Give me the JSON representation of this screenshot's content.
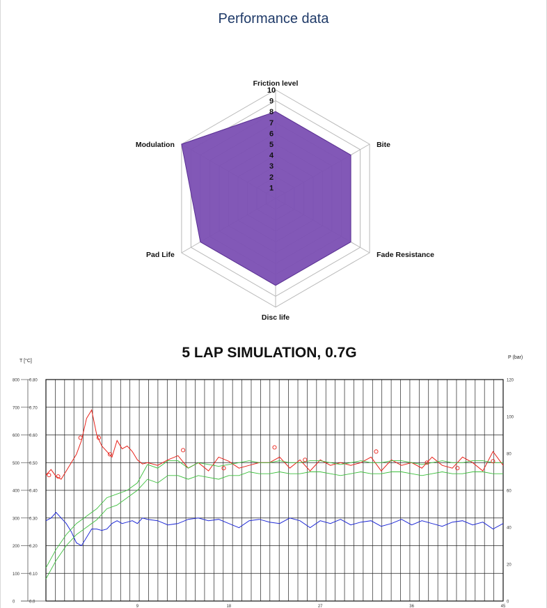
{
  "page": {
    "title": "Performance data"
  },
  "chart_data": [
    {
      "type": "radar",
      "categories": [
        "Friction level",
        "Bite",
        "Fade Resistance",
        "Disc life",
        "Pad Life",
        "Modulation"
      ],
      "values": [
        8,
        8,
        8,
        8,
        8,
        10
      ],
      "ticks": [
        "1",
        "2",
        "3",
        "4",
        "5",
        "6",
        "7",
        "8",
        "9",
        "10"
      ],
      "range": [
        0,
        10
      ],
      "fill_color": "#7b4fb3",
      "stroke_color": "#5a2f94"
    },
    {
      "type": "line",
      "title": "5 LAP SIMULATION, 0.7G",
      "ylabel_left": "T [°C]",
      "ylabel_right": "P (bar)",
      "xlim": [
        0,
        45
      ],
      "ylim_left": [
        0,
        800
      ],
      "ylim_right": [
        0,
        120
      ],
      "x_ticks": [
        "9",
        "18",
        "27",
        "36",
        "45"
      ],
      "y_ticks_left": [
        "0",
        "100",
        "200",
        "300",
        "400",
        "500",
        "600",
        "700",
        "800"
      ],
      "y_ticks_mu": [
        "0.0",
        "0.10",
        "0.20",
        "0.30",
        "0.40",
        "0.50",
        "0.60",
        "0.70",
        "0.80"
      ],
      "y_ticks_right": [
        "0",
        "20",
        "40",
        "60",
        "80",
        "100",
        "120"
      ],
      "grid": true,
      "series": [
        {
          "axis": "left",
          "color": "#e8221a",
          "x": [
            0,
            0.5,
            1,
            1.5,
            2,
            2.5,
            3,
            3.5,
            4,
            4.5,
            5,
            5.5,
            6,
            6.5,
            7,
            7.5,
            8,
            8.5,
            9,
            9.5,
            10,
            11,
            12,
            13,
            14,
            15,
            16,
            17,
            18,
            19,
            20,
            21,
            22,
            23,
            24,
            25,
            26,
            27,
            28,
            29,
            30,
            31,
            32,
            33,
            34,
            35,
            36,
            37,
            38,
            39,
            40,
            41,
            42,
            43,
            44,
            45
          ],
          "values": [
            455,
            475,
            450,
            440,
            470,
            500,
            530,
            580,
            660,
            690,
            600,
            560,
            540,
            520,
            580,
            550,
            560,
            540,
            510,
            495,
            500,
            490,
            510,
            525,
            480,
            500,
            470,
            520,
            505,
            480,
            490,
            500,
            500,
            520,
            480,
            510,
            470,
            510,
            490,
            500,
            490,
            500,
            520,
            470,
            510,
            490,
            500,
            480,
            520,
            490,
            480,
            520,
            500,
            470,
            540,
            490
          ]
        },
        {
          "axis": "left",
          "color": "#1f2ad6",
          "x": [
            0,
            0.5,
            1,
            1.5,
            2,
            2.5,
            3,
            3.5,
            4,
            4.5,
            5,
            5.5,
            6,
            6.5,
            7,
            7.5,
            8,
            8.5,
            9,
            9.5,
            10,
            11,
            12,
            13,
            14,
            15,
            16,
            17,
            18,
            19,
            20,
            21,
            22,
            23,
            24,
            25,
            26,
            27,
            28,
            29,
            30,
            31,
            32,
            33,
            34,
            35,
            36,
            37,
            38,
            39,
            40,
            41,
            42,
            43,
            44,
            45
          ],
          "values": [
            290,
            300,
            320,
            300,
            280,
            250,
            210,
            200,
            230,
            260,
            260,
            255,
            260,
            280,
            290,
            280,
            285,
            290,
            280,
            300,
            295,
            290,
            275,
            280,
            295,
            300,
            290,
            295,
            280,
            265,
            290,
            295,
            285,
            280,
            300,
            290,
            265,
            290,
            280,
            295,
            275,
            285,
            290,
            270,
            280,
            295,
            275,
            290,
            280,
            270,
            285,
            290,
            275,
            285,
            260,
            280
          ]
        },
        {
          "axis": "right",
          "color": "#3bbf3b",
          "x": [
            0,
            1,
            2,
            3,
            4,
            5,
            6,
            7,
            8,
            9,
            10,
            11,
            12,
            13,
            14,
            15,
            16,
            17,
            18,
            19,
            20,
            21,
            22,
            23,
            24,
            25,
            26,
            27,
            28,
            29,
            30,
            31,
            32,
            33,
            34,
            35,
            36,
            37,
            38,
            39,
            40,
            41,
            42,
            43,
            44,
            45
          ],
          "values": [
            18,
            28,
            36,
            42,
            46,
            50,
            56,
            58,
            60,
            64,
            74,
            72,
            76,
            76,
            72,
            75,
            74,
            73,
            74,
            75,
            76,
            75,
            75,
            76,
            75,
            75,
            76,
            76,
            75,
            74,
            75,
            76,
            75,
            75,
            76,
            76,
            75,
            74,
            75,
            76,
            75,
            75,
            76,
            76,
            75,
            75
          ]
        },
        {
          "axis": "right",
          "color": "#3bbf3b",
          "x": [
            0,
            1,
            2,
            3,
            4,
            5,
            6,
            7,
            8,
            9,
            10,
            11,
            12,
            13,
            14,
            15,
            16,
            17,
            18,
            19,
            20,
            21,
            22,
            23,
            24,
            25,
            26,
            27,
            28,
            29,
            30,
            31,
            32,
            33,
            34,
            35,
            36,
            37,
            38,
            39,
            40,
            41,
            42,
            43,
            44,
            45
          ],
          "values": [
            12,
            22,
            30,
            36,
            40,
            44,
            50,
            52,
            56,
            60,
            66,
            64,
            68,
            68,
            66,
            68,
            67,
            66,
            68,
            68,
            70,
            69,
            69,
            70,
            69,
            69,
            70,
            70,
            69,
            68,
            69,
            70,
            69,
            69,
            70,
            70,
            69,
            68,
            69,
            70,
            69,
            69,
            70,
            70,
            69,
            69
          ]
        }
      ],
      "markers": {
        "color": "#e8221a",
        "x": [
          0.3,
          1.2,
          3.4,
          5.2,
          6.3,
          13.5,
          17.5,
          22.5,
          25.5,
          32.5,
          37.5,
          40.5,
          44.0
        ],
        "values": [
          455,
          450,
          590,
          590,
          530,
          545,
          480,
          555,
          510,
          540,
          500,
          480,
          505
        ]
      }
    }
  ]
}
